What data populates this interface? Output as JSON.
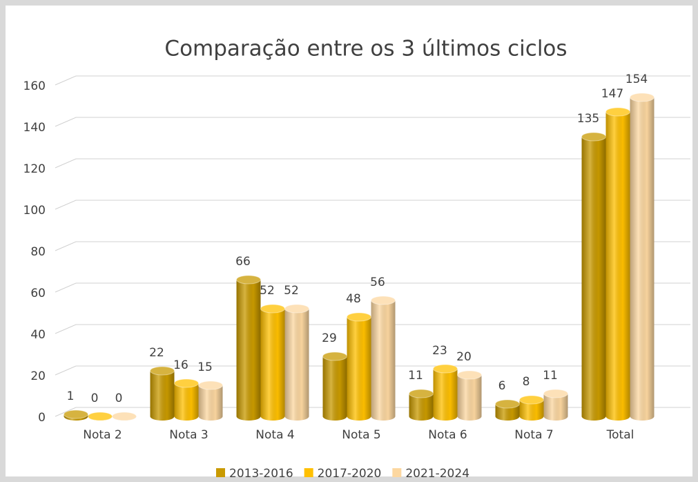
{
  "chart_data": {
    "type": "bar3d",
    "title": "Comparação entre os 3 últimos ciclos",
    "categories": [
      "Nota 2",
      "Nota 3",
      "Nota 4",
      "Nota 5",
      "Nota 6",
      "Nota 7",
      "Total"
    ],
    "series": [
      {
        "name": "2013-2016",
        "color": "#c99a00",
        "values": [
          1,
          22,
          66,
          29,
          11,
          6,
          135
        ]
      },
      {
        "name": "2017-2020",
        "color": "#ffc000",
        "values": [
          0,
          16,
          52,
          48,
          23,
          8,
          147
        ]
      },
      {
        "name": "2021-2024",
        "color": "#fcd7a0",
        "values": [
          0,
          15,
          52,
          56,
          20,
          11,
          154
        ]
      }
    ],
    "ylim": [
      0,
      160
    ],
    "yticks": [
      0,
      20,
      40,
      60,
      80,
      100,
      120,
      140,
      160
    ],
    "grid": true,
    "legend": "bottom"
  }
}
